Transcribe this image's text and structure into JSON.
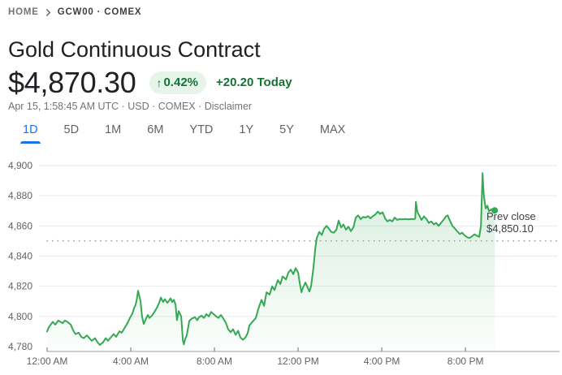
{
  "breadcrumb": {
    "home": "HOME",
    "symbol": "GCW00 · COMEX"
  },
  "header": {
    "title": "Gold Continuous Contract"
  },
  "quote": {
    "price": "$4,870.30",
    "change_percent": "0.42%",
    "up_arrow": "↑",
    "change_today": "+20.20 Today",
    "info": "Apr 15, 1:58:45 AM UTC · USD · COMEX ·",
    "disclaimer": "Disclaimer"
  },
  "tabs": [
    {
      "label": "1D",
      "active": true
    },
    {
      "label": "5D",
      "active": false
    },
    {
      "label": "1M",
      "active": false
    },
    {
      "label": "6M",
      "active": false
    },
    {
      "label": "YTD",
      "active": false
    },
    {
      "label": "1Y",
      "active": false
    },
    {
      "label": "5Y",
      "active": false
    },
    {
      "label": "MAX",
      "active": false
    }
  ],
  "colors": {
    "line_green": "#34a853",
    "text_green": "#137333",
    "badge_bg": "#e6f4ea",
    "active_tab_blue": "#1a73e8",
    "grid": "#e8eaed",
    "axis": "#9aa0a6",
    "tick": "#80868b",
    "axis_label": "#5f6368",
    "prev_close_dots": "#9aa0a6",
    "fill_top": "rgba(52,168,83,0.20)",
    "fill_bottom": "rgba(52,168,83,0.02)"
  },
  "chart_data": {
    "type": "area",
    "title": "Gold Continuous Contract intraday (1D)",
    "x_unit": "hours since 12:00 AM",
    "xlim": [
      0,
      24.5
    ],
    "ylim": [
      4780,
      4900
    ],
    "grid": true,
    "x_ticks": [
      0,
      4,
      8,
      12,
      16,
      20
    ],
    "x_tick_labels": [
      "12:00 AM",
      "4:00 AM",
      "8:00 AM",
      "12:00 PM",
      "4:00 PM",
      "8:00 PM"
    ],
    "y_ticks": [
      {
        "value": 4780,
        "label": "4,780",
        "gridline": false
      },
      {
        "value": 4800,
        "label": "4,800",
        "gridline": true
      },
      {
        "value": 4820,
        "label": "4,820",
        "gridline": true
      },
      {
        "value": 4840,
        "label": "4,840",
        "gridline": true
      },
      {
        "value": 4860,
        "label": "4,860",
        "gridline": true
      },
      {
        "value": 4880,
        "label": "4,880",
        "gridline": true
      },
      {
        "value": 4900,
        "label": "4,900",
        "gridline": true
      }
    ],
    "prev_close": 4850.1,
    "annotation": {
      "line1": "Prev close",
      "line2": "$4,850.10"
    },
    "last_price": 4870.3,
    "series": [
      {
        "name": "GCW00",
        "points": [
          [
            0,
            4790
          ],
          [
            0.08,
            4792.8
          ],
          [
            0.27,
            4796.4
          ],
          [
            0.39,
            4794.6
          ],
          [
            0.54,
            4797.3
          ],
          [
            0.74,
            4795.5
          ],
          [
            0.85,
            4797.3
          ],
          [
            0.97,
            4796.4
          ],
          [
            1.13,
            4794.6
          ],
          [
            1.24,
            4791
          ],
          [
            1.36,
            4788.3
          ],
          [
            1.51,
            4789.2
          ],
          [
            1.63,
            4786.5
          ],
          [
            1.75,
            4785.6
          ],
          [
            1.9,
            4787.4
          ],
          [
            2.02,
            4785.6
          ],
          [
            2.14,
            4783.8
          ],
          [
            2.29,
            4785.6
          ],
          [
            2.41,
            4782.9
          ],
          [
            2.52,
            4781.1
          ],
          [
            2.68,
            4782.9
          ],
          [
            2.8,
            4785.6
          ],
          [
            2.91,
            4783.8
          ],
          [
            3.07,
            4786.5
          ],
          [
            3.18,
            4788.3
          ],
          [
            3.3,
            4786.5
          ],
          [
            3.46,
            4790.1
          ],
          [
            3.57,
            4789.2
          ],
          [
            3.69,
            4792
          ],
          [
            3.84,
            4795.5
          ],
          [
            3.96,
            4799
          ],
          [
            4.08,
            4802
          ],
          [
            4.16,
            4805.5
          ],
          [
            4.23,
            4807.5
          ],
          [
            4.3,
            4812
          ],
          [
            4.35,
            4817
          ],
          [
            4.42,
            4813
          ],
          [
            4.47,
            4810
          ],
          [
            4.54,
            4800
          ],
          [
            4.62,
            4795
          ],
          [
            4.74,
            4799
          ],
          [
            4.82,
            4801
          ],
          [
            4.89,
            4799
          ],
          [
            5.01,
            4800.5
          ],
          [
            5.13,
            4803
          ],
          [
            5.24,
            4805.5
          ],
          [
            5.36,
            4809
          ],
          [
            5.44,
            4812.5
          ],
          [
            5.55,
            4809.5
          ],
          [
            5.63,
            4811.5
          ],
          [
            5.75,
            4809
          ],
          [
            5.83,
            4810.5
          ],
          [
            5.9,
            4812
          ],
          [
            5.98,
            4809.5
          ],
          [
            6.06,
            4811
          ],
          [
            6.14,
            4808
          ],
          [
            6.21,
            4797.5
          ],
          [
            6.29,
            4803.5
          ],
          [
            6.41,
            4800
          ],
          [
            6.49,
            4784
          ],
          [
            6.54,
            4781.5
          ],
          [
            6.6,
            4785
          ],
          [
            6.68,
            4787.5
          ],
          [
            6.8,
            4797
          ],
          [
            6.91,
            4798.5
          ],
          [
            7.07,
            4799.5
          ],
          [
            7.18,
            4797.5
          ],
          [
            7.26,
            4799.5
          ],
          [
            7.38,
            4800.5
          ],
          [
            7.5,
            4799
          ],
          [
            7.61,
            4801.5
          ],
          [
            7.73,
            4800
          ],
          [
            7.84,
            4803
          ],
          [
            7.96,
            4801.5
          ],
          [
            8.08,
            4800
          ],
          [
            8.19,
            4799
          ],
          [
            8.31,
            4801
          ],
          [
            8.43,
            4798.5
          ],
          [
            8.54,
            4796
          ],
          [
            8.66,
            4791.5
          ],
          [
            8.78,
            4789.5
          ],
          [
            8.89,
            4791.5
          ],
          [
            9.01,
            4787.8
          ],
          [
            9.13,
            4790.5
          ],
          [
            9.24,
            4786
          ],
          [
            9.36,
            4784.5
          ],
          [
            9.48,
            4786
          ],
          [
            9.59,
            4789
          ],
          [
            9.67,
            4794
          ],
          [
            9.79,
            4796
          ],
          [
            9.98,
            4799
          ],
          [
            10.1,
            4805
          ],
          [
            10.25,
            4811
          ],
          [
            10.37,
            4807
          ],
          [
            10.49,
            4816
          ],
          [
            10.64,
            4814.5
          ],
          [
            10.76,
            4820
          ],
          [
            10.87,
            4817.5
          ],
          [
            11.03,
            4824
          ],
          [
            11.15,
            4821.5
          ],
          [
            11.26,
            4826.5
          ],
          [
            11.42,
            4824.5
          ],
          [
            11.53,
            4829
          ],
          [
            11.65,
            4831
          ],
          [
            11.77,
            4828
          ],
          [
            11.88,
            4832
          ],
          [
            12,
            4829
          ],
          [
            12.08,
            4822
          ],
          [
            12.16,
            4816
          ],
          [
            12.23,
            4819
          ],
          [
            12.35,
            4822.5
          ],
          [
            12.43,
            4820
          ],
          [
            12.54,
            4816.5
          ],
          [
            12.62,
            4820
          ],
          [
            12.74,
            4833
          ],
          [
            12.82,
            4845
          ],
          [
            12.89,
            4852
          ],
          [
            13.01,
            4856
          ],
          [
            13.13,
            4854
          ],
          [
            13.24,
            4858
          ],
          [
            13.36,
            4860
          ],
          [
            13.48,
            4858
          ],
          [
            13.59,
            4856
          ],
          [
            13.71,
            4855.5
          ],
          [
            13.83,
            4857.5
          ],
          [
            13.94,
            4863.5
          ],
          [
            14.06,
            4859
          ],
          [
            14.17,
            4861
          ],
          [
            14.29,
            4857.5
          ],
          [
            14.41,
            4859.5
          ],
          [
            14.52,
            4856.5
          ],
          [
            14.64,
            4859
          ],
          [
            14.76,
            4865.5
          ],
          [
            14.87,
            4867
          ],
          [
            14.99,
            4864.5
          ],
          [
            15.11,
            4866
          ],
          [
            15.22,
            4865.5
          ],
          [
            15.34,
            4866.5
          ],
          [
            15.46,
            4865
          ],
          [
            15.57,
            4866.5
          ],
          [
            15.69,
            4867.5
          ],
          [
            15.81,
            4869.5
          ],
          [
            15.92,
            4868
          ],
          [
            16.04,
            4869
          ],
          [
            16.16,
            4865
          ],
          [
            16.27,
            4863
          ],
          [
            16.39,
            4864
          ],
          [
            16.5,
            4863
          ],
          [
            16.62,
            4865.5
          ],
          [
            16.74,
            4864
          ],
          [
            16.85,
            4864.5
          ],
          [
            16.97,
            4864.3
          ],
          [
            17.13,
            4864.6
          ],
          [
            17.28,
            4864.4
          ],
          [
            17.44,
            4864.6
          ],
          [
            17.55,
            4864.5
          ],
          [
            17.6,
            4865
          ],
          [
            17.63,
            4876
          ],
          [
            17.68,
            4871
          ],
          [
            17.71,
            4869
          ],
          [
            17.79,
            4867
          ],
          [
            17.9,
            4864
          ],
          [
            18.02,
            4866.3
          ],
          [
            18.14,
            4864.5
          ],
          [
            18.25,
            4862
          ],
          [
            18.37,
            4863
          ],
          [
            18.49,
            4861
          ],
          [
            18.6,
            4862
          ],
          [
            18.72,
            4860
          ],
          [
            18.83,
            4862
          ],
          [
            18.95,
            4864
          ],
          [
            19.07,
            4866.3
          ],
          [
            19.15,
            4867
          ],
          [
            19.26,
            4863.5
          ],
          [
            19.38,
            4860
          ],
          [
            19.5,
            4858.2
          ],
          [
            19.61,
            4856.4
          ],
          [
            19.73,
            4854.6
          ],
          [
            19.84,
            4855.5
          ],
          [
            19.96,
            4853.7
          ],
          [
            20.08,
            4852.5
          ],
          [
            20.19,
            4852
          ],
          [
            20.31,
            4853
          ],
          [
            20.43,
            4854.5
          ],
          [
            20.54,
            4853.5
          ],
          [
            20.66,
            4852.8
          ],
          [
            20.74,
            4860
          ],
          [
            20.78,
            4878
          ],
          [
            20.82,
            4895
          ],
          [
            20.85,
            4886
          ],
          [
            20.89,
            4879
          ],
          [
            20.93,
            4875
          ],
          [
            20.97,
            4871.6
          ],
          [
            21.05,
            4873.4
          ],
          [
            21.13,
            4869.7
          ],
          [
            21.24,
            4871
          ],
          [
            21.32,
            4869.5
          ],
          [
            21.4,
            4870.3
          ]
        ]
      }
    ]
  }
}
